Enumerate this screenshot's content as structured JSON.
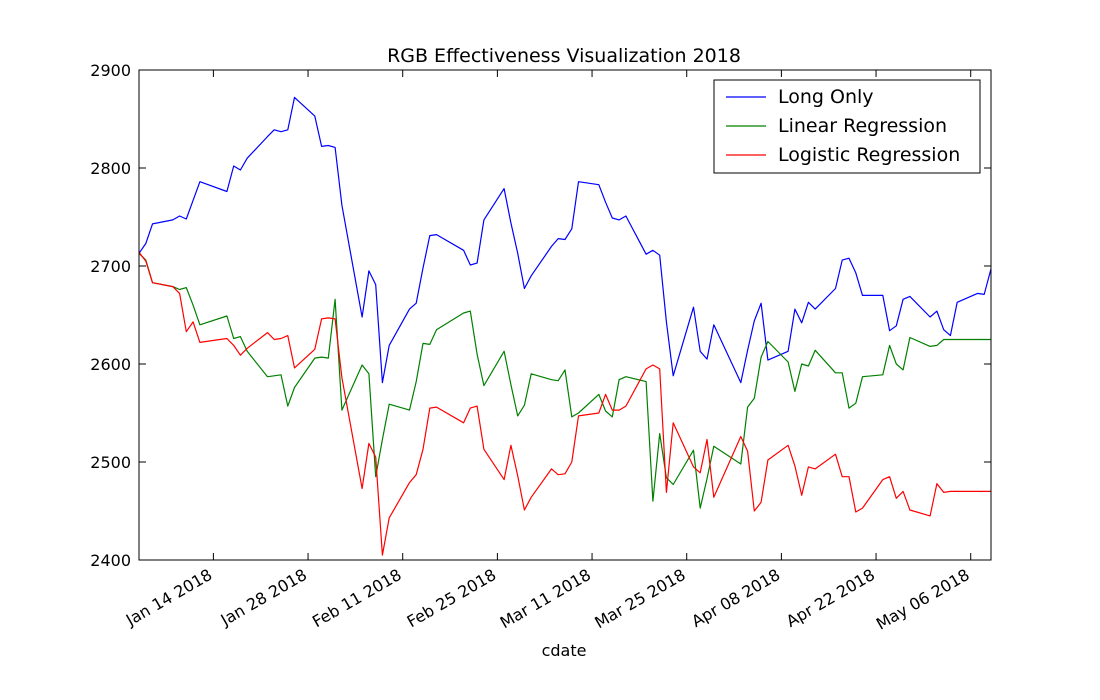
{
  "chart_data": {
    "type": "line",
    "title": "RGB Effectiveness Visualization 2018",
    "xlabel": "cdate",
    "ylabel": "",
    "ylim": [
      2400,
      2900
    ],
    "yticks": [
      2400,
      2500,
      2600,
      2700,
      2800,
      2900
    ],
    "xlim": [
      "2018-01-03",
      "2018-05-09"
    ],
    "xticks": [
      {
        "date": "2018-01-14",
        "label": "Jan 14 2018"
      },
      {
        "date": "2018-01-28",
        "label": "Jan 28 2018"
      },
      {
        "date": "2018-02-11",
        "label": "Feb 11 2018"
      },
      {
        "date": "2018-02-25",
        "label": "Feb 25 2018"
      },
      {
        "date": "2018-03-11",
        "label": "Mar 11 2018"
      },
      {
        "date": "2018-03-25",
        "label": "Mar 25 2018"
      },
      {
        "date": "2018-04-08",
        "label": "Apr 08 2018"
      },
      {
        "date": "2018-04-22",
        "label": "Apr 22 2018"
      },
      {
        "date": "2018-05-06",
        "label": "May 06 2018"
      }
    ],
    "grid": false,
    "legend_position": "top-right",
    "x": [
      "2018-01-03",
      "2018-01-04",
      "2018-01-05",
      "2018-01-08",
      "2018-01-09",
      "2018-01-10",
      "2018-01-11",
      "2018-01-12",
      "2018-01-16",
      "2018-01-17",
      "2018-01-18",
      "2018-01-19",
      "2018-01-22",
      "2018-01-23",
      "2018-01-24",
      "2018-01-25",
      "2018-01-26",
      "2018-01-29",
      "2018-01-30",
      "2018-01-31",
      "2018-02-01",
      "2018-02-02",
      "2018-02-05",
      "2018-02-06",
      "2018-02-07",
      "2018-02-08",
      "2018-02-09",
      "2018-02-12",
      "2018-02-13",
      "2018-02-14",
      "2018-02-15",
      "2018-02-16",
      "2018-02-20",
      "2018-02-21",
      "2018-02-22",
      "2018-02-23",
      "2018-02-26",
      "2018-02-27",
      "2018-02-28",
      "2018-03-01",
      "2018-03-02",
      "2018-03-05",
      "2018-03-06",
      "2018-03-07",
      "2018-03-08",
      "2018-03-09",
      "2018-03-12",
      "2018-03-13",
      "2018-03-14",
      "2018-03-15",
      "2018-03-16",
      "2018-03-19",
      "2018-03-20",
      "2018-03-21",
      "2018-03-22",
      "2018-03-23",
      "2018-03-26",
      "2018-03-27",
      "2018-03-28",
      "2018-03-29",
      "2018-04-02",
      "2018-04-03",
      "2018-04-04",
      "2018-04-05",
      "2018-04-06",
      "2018-04-09",
      "2018-04-10",
      "2018-04-11",
      "2018-04-12",
      "2018-04-13",
      "2018-04-16",
      "2018-04-17",
      "2018-04-18",
      "2018-04-19",
      "2018-04-20",
      "2018-04-23",
      "2018-04-24",
      "2018-04-25",
      "2018-04-26",
      "2018-04-27",
      "2018-04-30",
      "2018-05-01",
      "2018-05-02",
      "2018-05-03",
      "2018-05-04",
      "2018-05-07",
      "2018-05-08",
      "2018-05-09"
    ],
    "series": [
      {
        "name": "Long Only",
        "color": "#0000ff",
        "values": [
          2713,
          2723,
          2743,
          2747,
          2751,
          2748,
          2767,
          2786,
          2776,
          2802,
          2798,
          2810,
          2832,
          2839,
          2837,
          2839,
          2872,
          2853,
          2822,
          2823,
          2821,
          2762,
          2648,
          2695,
          2681,
          2581,
          2619,
          2656,
          2662,
          2698,
          2731,
          2732,
          2716,
          2701,
          2703,
          2747,
          2779,
          2744,
          2713,
          2677,
          2690,
          2720,
          2728,
          2727,
          2738,
          2786,
          2783,
          2765,
          2749,
          2747,
          2751,
          2712,
          2716,
          2711,
          2643,
          2588,
          2658,
          2613,
          2605,
          2640,
          2581,
          2614,
          2644,
          2662,
          2604,
          2613,
          2656,
          2642,
          2663,
          2656,
          2677,
          2706,
          2708,
          2693,
          2670,
          2670,
          2634,
          2639,
          2666,
          2669,
          2648,
          2654,
          2635,
          2629,
          2663,
          2672,
          2671,
          2697
        ]
      },
      {
        "name": "Linear Regression",
        "color": "#008000",
        "values": [
          2713,
          2706,
          2683,
          2679,
          2676,
          2678,
          2660,
          2640,
          2649,
          2626,
          2628,
          2613,
          2587,
          2588,
          2589,
          2557,
          2576,
          2606,
          2607,
          2606,
          2666,
          2553,
          2599,
          2590,
          2485,
          2523,
          2559,
          2553,
          2582,
          2621,
          2620,
          2635,
          2652,
          2654,
          2610,
          2578,
          2613,
          2579,
          2547,
          2558,
          2590,
          2584,
          2583,
          2594,
          2546,
          2550,
          2569,
          2552,
          2546,
          2584,
          2587,
          2582,
          2460,
          2529,
          2484,
          2477,
          2512,
          2453,
          2483,
          2516,
          2498,
          2556,
          2565,
          2607,
          2623,
          2602,
          2572,
          2600,
          2598,
          2614,
          2591,
          2591,
          2555,
          2560,
          2587,
          2589,
          2619,
          2600,
          2594,
          2627,
          2618,
          2619,
          2625,
          2625,
          2625,
          2625,
          2625,
          2625
        ]
      },
      {
        "name": "Logistic Regression",
        "color": "#ff0000",
        "values": [
          2714,
          2705,
          2683,
          2679,
          2672,
          2633,
          2643,
          2622,
          2626,
          2619,
          2609,
          2616,
          2632,
          2625,
          2626,
          2629,
          2596,
          2615,
          2646,
          2647,
          2646,
          2586,
          2473,
          2519,
          2505,
          2405,
          2443,
          2479,
          2487,
          2513,
          2555,
          2556,
          2540,
          2555,
          2557,
          2513,
          2482,
          2517,
          2486,
          2451,
          2464,
          2493,
          2487,
          2488,
          2500,
          2547,
          2550,
          2569,
          2553,
          2553,
          2557,
          2595,
          2599,
          2595,
          2469,
          2540,
          2495,
          2489,
          2523,
          2464,
          2526,
          2511,
          2450,
          2459,
          2502,
          2517,
          2496,
          2466,
          2495,
          2493,
          2508,
          2485,
          2485,
          2449,
          2453,
          2482,
          2485,
          2463,
          2470,
          2451,
          2445,
          2478,
          2469,
          2470,
          2470,
          2470,
          2470,
          2470
        ]
      }
    ]
  }
}
